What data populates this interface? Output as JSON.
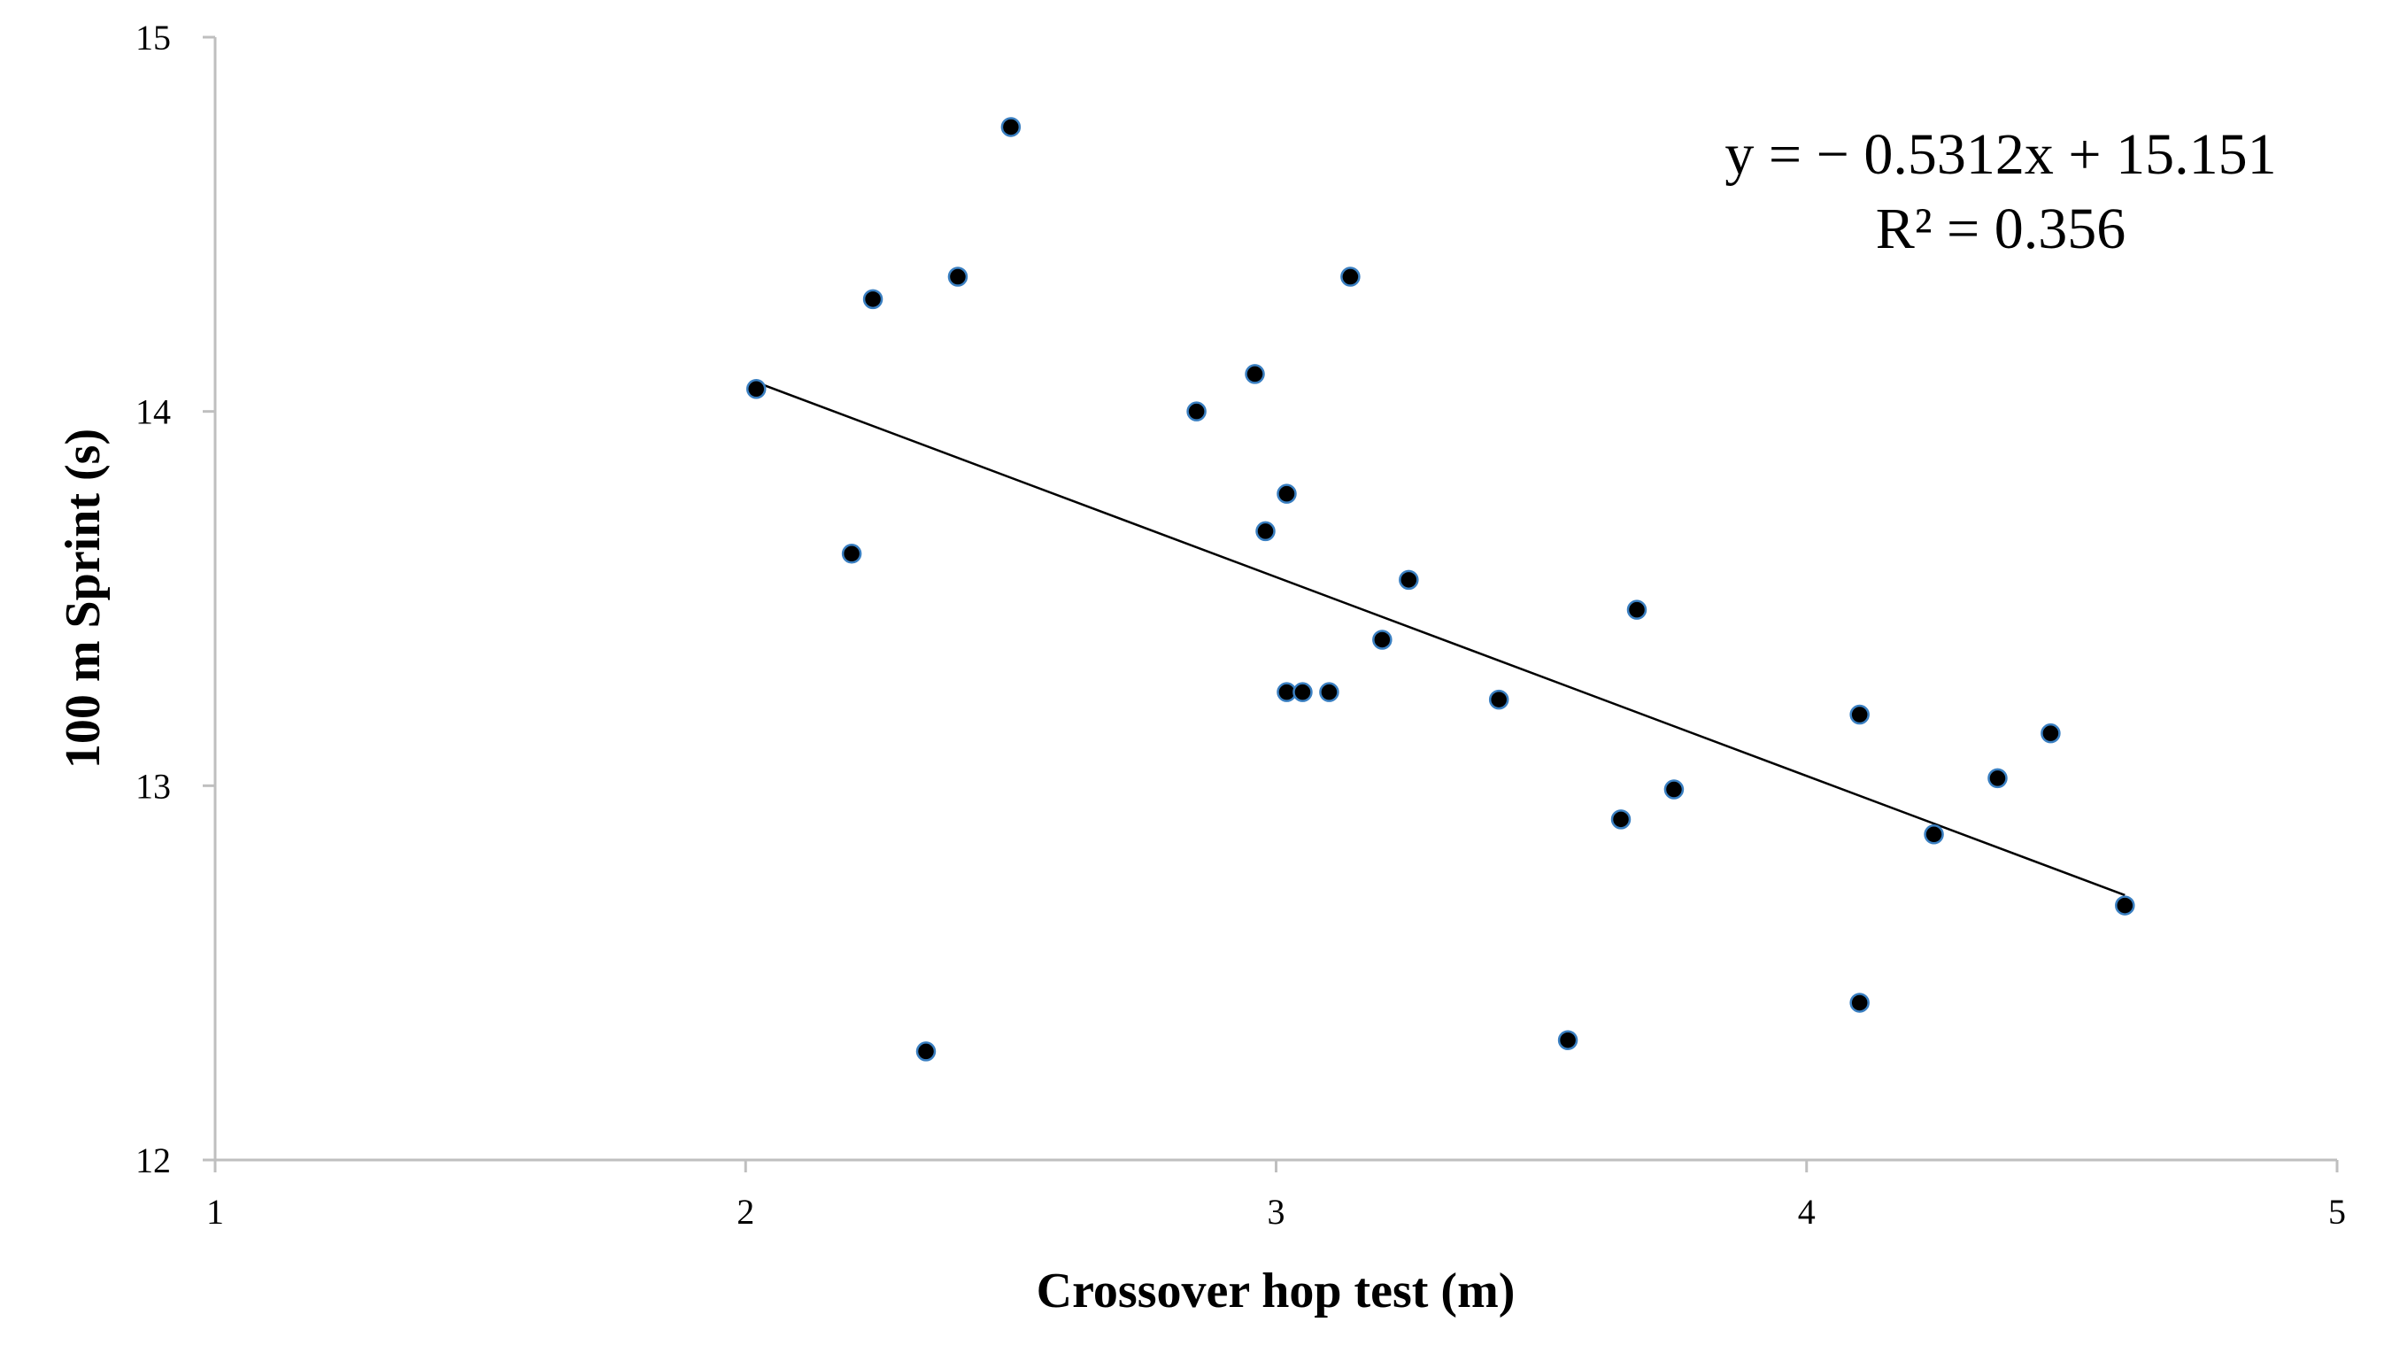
{
  "chart_data": {
    "type": "scatter",
    "xlabel": "Crossover hop test (m)",
    "ylabel": "100 m Sprint (s)",
    "xlim": [
      1,
      5
    ],
    "ylim": [
      12,
      15
    ],
    "x_ticks": [
      "1",
      "2",
      "3",
      "4",
      "5"
    ],
    "y_ticks": [
      "12",
      "13",
      "14",
      "15"
    ],
    "grid": false,
    "series": [
      {
        "points": [
          {
            "x": 2.02,
            "y": 14.06
          },
          {
            "x": 2.2,
            "y": 13.62
          },
          {
            "x": 2.24,
            "y": 14.3
          },
          {
            "x": 2.34,
            "y": 12.29
          },
          {
            "x": 2.4,
            "y": 14.36
          },
          {
            "x": 2.5,
            "y": 14.76
          },
          {
            "x": 2.85,
            "y": 14.0
          },
          {
            "x": 2.96,
            "y": 14.1
          },
          {
            "x": 2.98,
            "y": 13.68
          },
          {
            "x": 3.02,
            "y": 13.78
          },
          {
            "x": 3.02,
            "y": 13.25
          },
          {
            "x": 3.05,
            "y": 13.25
          },
          {
            "x": 3.1,
            "y": 13.25
          },
          {
            "x": 3.14,
            "y": 14.36
          },
          {
            "x": 3.2,
            "y": 13.39
          },
          {
            "x": 3.25,
            "y": 13.55
          },
          {
            "x": 3.42,
            "y": 13.23
          },
          {
            "x": 3.55,
            "y": 12.32
          },
          {
            "x": 3.65,
            "y": 12.91
          },
          {
            "x": 3.68,
            "y": 13.47
          },
          {
            "x": 3.75,
            "y": 12.99
          },
          {
            "x": 4.1,
            "y": 13.19
          },
          {
            "x": 4.1,
            "y": 12.42
          },
          {
            "x": 4.24,
            "y": 12.87
          },
          {
            "x": 4.36,
            "y": 13.02
          },
          {
            "x": 4.46,
            "y": 13.14
          },
          {
            "x": 4.6,
            "y": 12.68
          }
        ]
      }
    ],
    "trendline": {
      "type": "linear",
      "slope": -0.5312,
      "intercept": 15.151,
      "x_range": [
        2.02,
        4.6
      ],
      "equation": "y = − 0.5312x + 15.151",
      "r_squared": "R² = 0.356"
    },
    "colors": {
      "point_fill": "#000000",
      "point_stroke": "#3a7fc1",
      "axis": "#bfbfbf",
      "trendline": "#000000"
    }
  }
}
